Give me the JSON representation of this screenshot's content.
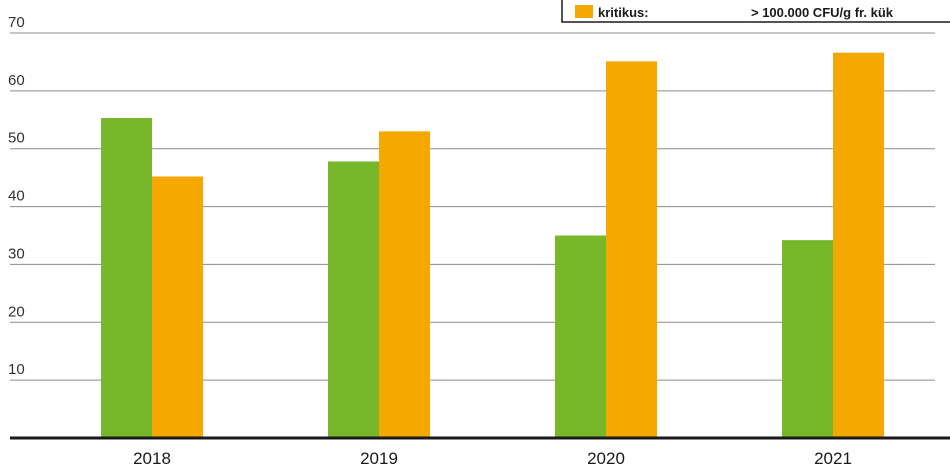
{
  "chart_data": {
    "type": "bar",
    "categories": [
      "2018",
      "2019",
      "2020",
      "2021"
    ],
    "series": [
      {
        "color": "#76b82a",
        "values": [
          55.3,
          47.8,
          35.0,
          34.2
        ]
      },
      {
        "color": "#f5a800",
        "values": [
          45.2,
          53.0,
          65.1,
          66.6
        ]
      }
    ],
    "yticks": [
      10,
      20,
      30,
      40,
      50,
      60,
      70
    ],
    "ylim": [
      0,
      70
    ],
    "grid": true,
    "legend": {
      "position": "top-right",
      "visible_entry": {
        "label": "kritikus:",
        "value": "> 100.000 CFU/g fr. kük",
        "color": "#f5a800"
      }
    }
  }
}
